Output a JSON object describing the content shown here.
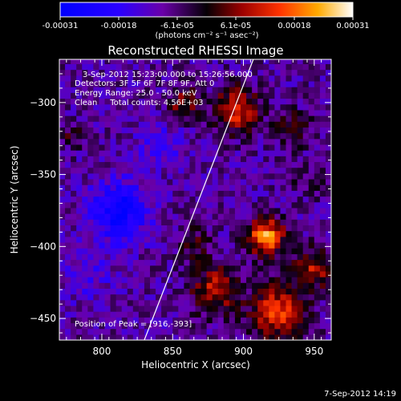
{
  "chart_data": {
    "type": "heatmap",
    "title": "Reconstructed RHESSI Image",
    "xlabel": "Heliocentric X (arcsec)",
    "ylabel": "Heliocentric Y (arcsec)",
    "xlim": [
      770,
      962
    ],
    "ylim": [
      -465,
      -270
    ],
    "xticks": [
      800,
      850,
      900,
      950
    ],
    "yticks": [
      -300,
      -350,
      -400,
      -450
    ],
    "colorbar": {
      "ticks": [
        "-0.00031",
        "-0.00018",
        "-6.1e-05",
        "6.1e-05",
        "0.00018",
        "0.00031"
      ],
      "range": [
        -0.00031,
        0.00031
      ],
      "units": "(photons cm⁻² s⁻¹ asec⁻²)"
    },
    "annotations": [
      "3-Sep-2012 15:23:00.000 to 15:26:56.000",
      "Detectors: 3F 5F 6F 7F 8F 9F, Att 0",
      "Energy Range: 25.0 - 50.0 keV",
      "Clean     Total counts: 4.56E+03"
    ],
    "peak_label": "Position of Peak = [916,-393]",
    "peak": [
      916,
      -393
    ],
    "sources": [
      {
        "x": 916,
        "y": -393,
        "peak": 0.00031,
        "sigma": 9
      },
      {
        "x": 895,
        "y": -305,
        "peak": 0.00022,
        "sigma": 11
      },
      {
        "x": 858,
        "y": -300,
        "peak": 0.00015,
        "sigma": 8
      },
      {
        "x": 925,
        "y": -445,
        "peak": 0.00024,
        "sigma": 13
      },
      {
        "x": 880,
        "y": -430,
        "peak": 0.00018,
        "sigma": 12
      },
      {
        "x": 950,
        "y": -415,
        "peak": 0.00017,
        "sigma": 10
      },
      {
        "x": 865,
        "y": -398,
        "peak": 9e-05,
        "sigma": 9
      },
      {
        "x": 935,
        "y": -318,
        "peak": 0.00011,
        "sigma": 9
      },
      {
        "x": 778,
        "y": -322,
        "peak": 8e-05,
        "sigma": 7
      },
      {
        "x": 945,
        "y": -355,
        "peak": 6e-05,
        "sigma": 8
      }
    ],
    "negative_regions": [
      {
        "x": 812,
        "y": -375,
        "peak": -0.0002,
        "sigma": 14
      },
      {
        "x": 840,
        "y": -330,
        "peak": -8e-05,
        "sigma": 12
      },
      {
        "x": 790,
        "y": -420,
        "peak": -6e-05,
        "sigma": 14
      }
    ],
    "limb_line": {
      "x": [
        830,
        907
      ],
      "y": [
        -465,
        -270
      ]
    }
  },
  "footer_date": "7-Sep-2012 14:19"
}
